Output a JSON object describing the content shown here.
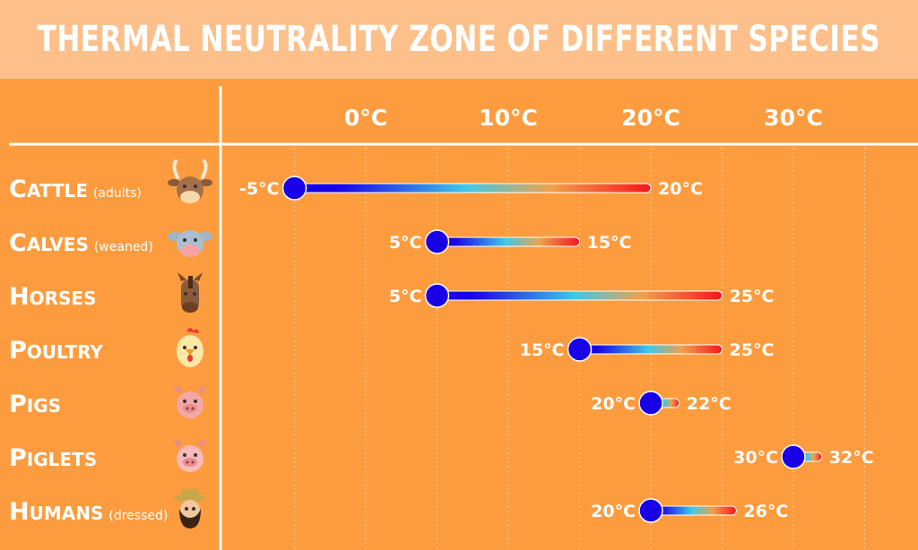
{
  "title": "THERMAL NEUTRALITY ZONE OF DIFFERENT SPECIES",
  "colors": {
    "background": "#fd9c3f",
    "title_bar": "#fdc08a",
    "bar_start": "#1a00e6",
    "bar_mid": "#3ec8e8",
    "bar_end": "#f5151e"
  },
  "chart_data": {
    "type": "range-bar",
    "unit": "°C",
    "x_ticks": [
      "0°C",
      "10°C",
      "20°C",
      "30°C"
    ],
    "x_tick_values": [
      0,
      10,
      20,
      30
    ],
    "xlim": [
      -10,
      35
    ],
    "grid": true,
    "rows": [
      {
        "name": "Cattle",
        "note": "(adults)",
        "icon": "cattle-icon",
        "min": -5,
        "max": 20,
        "min_label": "-5°C",
        "max_label": "20°C"
      },
      {
        "name": "Calves",
        "note": "(weaned)",
        "icon": "calf-icon",
        "min": 5,
        "max": 15,
        "min_label": "5°C",
        "max_label": "15°C"
      },
      {
        "name": "Horses",
        "note": "",
        "icon": "horse-icon",
        "min": 5,
        "max": 25,
        "min_label": "5°C",
        "max_label": "25°C"
      },
      {
        "name": "Poultry",
        "note": "",
        "icon": "chicken-icon",
        "min": 15,
        "max": 25,
        "min_label": "15°C",
        "max_label": "25°C"
      },
      {
        "name": "Pigs",
        "note": "",
        "icon": "pig-icon",
        "min": 20,
        "max": 22,
        "min_label": "20°C",
        "max_label": "22°C"
      },
      {
        "name": "Piglets",
        "note": "",
        "icon": "piglet-icon",
        "min": 30,
        "max": 32,
        "min_label": "30°C",
        "max_label": "32°C"
      },
      {
        "name": "Humans",
        "note": "(dressed)",
        "icon": "human-icon",
        "min": 20,
        "max": 26,
        "min_label": "20°C",
        "max_label": "26°C"
      }
    ]
  }
}
